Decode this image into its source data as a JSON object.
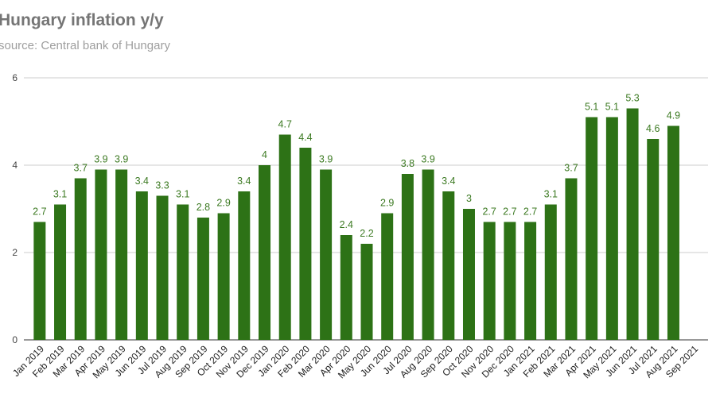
{
  "chart_data": {
    "type": "bar",
    "title": "Hungary inflation y/y",
    "subtitle": "source: Central bank of Hungary",
    "categories": [
      "Jan 2019",
      "Feb 2019",
      "Mar 2019",
      "Apr 2019",
      "May 2019",
      "Jun 2019",
      "Jul 2019",
      "Aug 2019",
      "Sep 2019",
      "Oct 2019",
      "Nov 2019",
      "Dec 2019",
      "Jan 2020",
      "Feb 2020",
      "Mar 2020",
      "Apr 2020",
      "May 2020",
      "Jun 2020",
      "Jul 2020",
      "Aug 2020",
      "Sep 2020",
      "Oct 2020",
      "Nov 2020",
      "Dec 2020",
      "Jan 2021",
      "Feb 2021",
      "Mar 2021",
      "Apr 2021",
      "May 2021",
      "Jun 2021",
      "Jul 2021",
      "Aug 2021",
      "Sep 2021"
    ],
    "values": [
      2.7,
      3.1,
      3.7,
      3.9,
      3.9,
      3.4,
      3.3,
      3.1,
      2.8,
      2.9,
      3.4,
      4,
      4.7,
      4.4,
      3.9,
      2.4,
      2.2,
      2.9,
      3.8,
      3.9,
      3.4,
      3,
      2.7,
      2.7,
      2.7,
      3.1,
      3.7,
      5.1,
      5.1,
      5.3,
      4.6,
      4.9,
      null
    ],
    "color": "#2d7216",
    "ylim": [
      0,
      6
    ],
    "yticks": [
      0,
      2,
      4,
      6
    ],
    "grid": true
  }
}
